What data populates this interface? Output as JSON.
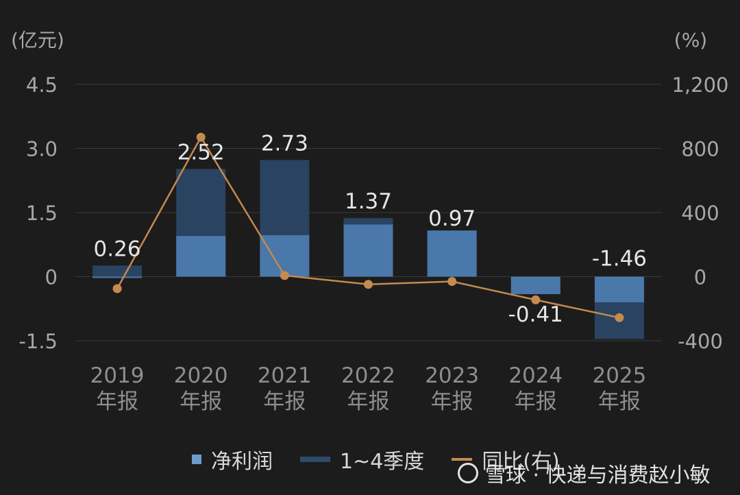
{
  "chart_data": {
    "type": "bar",
    "left_unit": "(亿元)",
    "right_unit": "(%)",
    "categories": [
      "2019\n年报",
      "2020\n年报",
      "2021\n年报",
      "2022\n年报",
      "2023\n年报",
      "2024\n年报",
      "2025\n年报"
    ],
    "left_ticks": [
      "4.5",
      "3.0",
      "1.5",
      "0",
      "-1.5"
    ],
    "right_ticks": [
      "1,200",
      "800",
      "400",
      "0",
      "-400"
    ],
    "ylim_left": [
      -1.5,
      4.5
    ],
    "ylim_right": [
      -400,
      1200
    ],
    "series": [
      {
        "name": "净利润",
        "values": [
          0.26,
          2.52,
          2.73,
          1.37,
          0.97,
          -0.41,
          -1.46
        ]
      },
      {
        "name": "1~4季度",
        "values": [
          0.26,
          2.52,
          2.73,
          1.37,
          0.97,
          -0.41,
          -1.46
        ],
        "lower_segment": [
          -0.02,
          0.95,
          0.97,
          1.22,
          1.08,
          -0.41,
          -0.6
        ]
      },
      {
        "name": "同比(右)",
        "values": [
          -75,
          870,
          7,
          -48,
          -30,
          -145,
          -256
        ]
      }
    ],
    "data_labels": [
      "0.26",
      "2.52",
      "2.73",
      "1.37",
      "0.97",
      "-0.41",
      "-1.46"
    ],
    "colors": {
      "bar_light": "#4a78aa",
      "bar_dark": "#2a4360",
      "line": "#c48a4e",
      "grid": "#3a3a3a"
    },
    "legend_position": "bottom"
  },
  "watermark": "雪球 · 快递与消费赵小敏"
}
